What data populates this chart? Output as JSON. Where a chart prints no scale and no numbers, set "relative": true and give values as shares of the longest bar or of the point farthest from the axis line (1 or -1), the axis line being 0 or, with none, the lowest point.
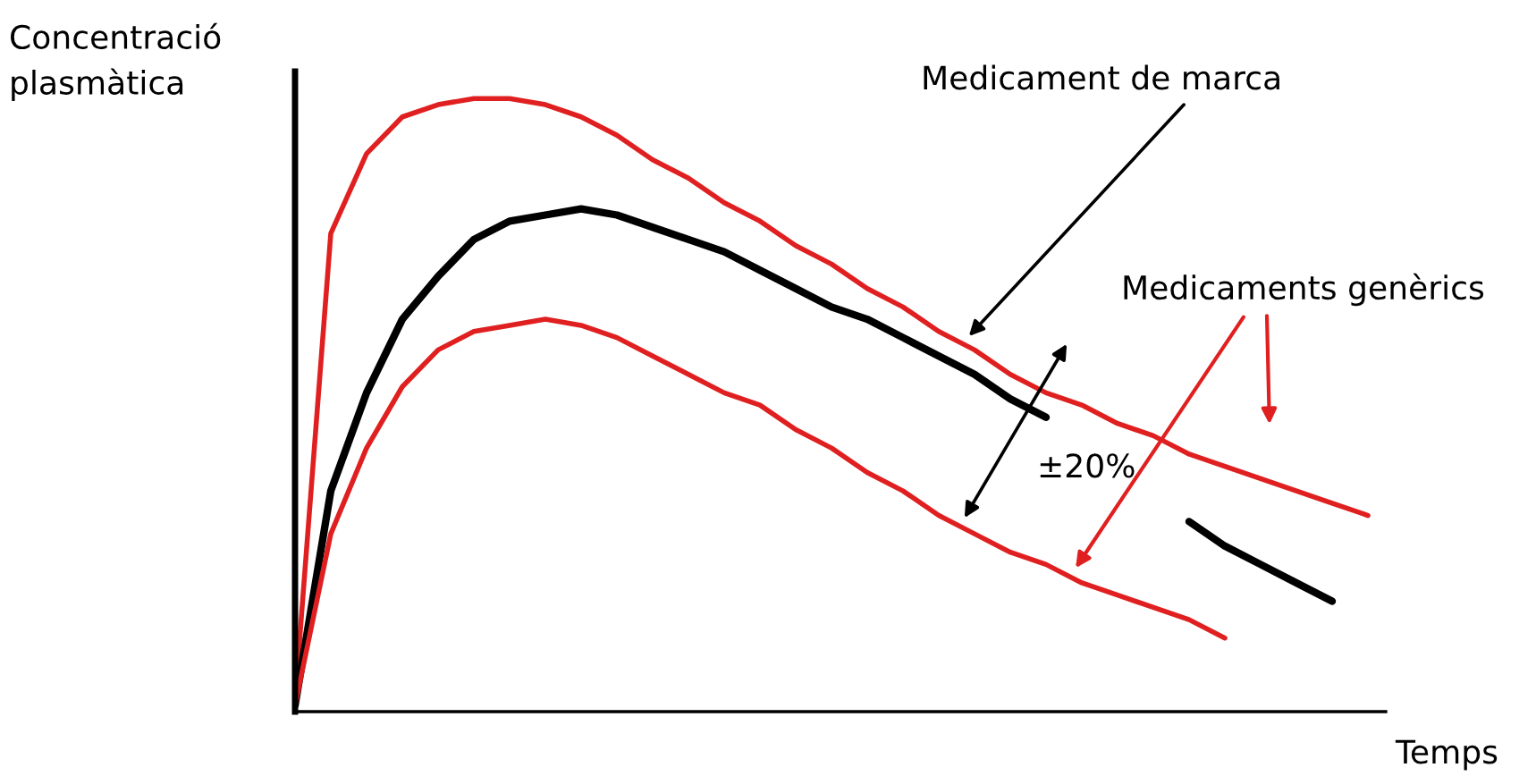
{
  "chart_data": {
    "type": "line",
    "relative": true,
    "xlabel": "Temps",
    "ylabel": "Concentració\nplasmàtica",
    "categories": [
      null,
      null,
      null,
      null,
      null,
      null,
      null,
      null,
      null,
      null,
      null,
      null,
      null,
      null,
      null,
      null,
      null,
      null,
      null,
      null,
      null,
      null,
      null,
      null,
      null,
      null,
      null,
      null,
      null,
      null,
      null
    ],
    "series": [
      {
        "color": "#e02020",
        "values": [
          0.02,
          0.78,
          0.91,
          0.97,
          0.99,
          1.0,
          1.0,
          0.99,
          0.97,
          0.94,
          0.9,
          0.87,
          0.83,
          0.8,
          0.76,
          0.73,
          0.69,
          0.66,
          0.62,
          0.59,
          0.55,
          0.52,
          0.5,
          0.47,
          0.45,
          0.42,
          0.4,
          0.38,
          0.36,
          0.34,
          0.32
        ]
      },
      {
        "color": "#000000",
        "values": [
          0.01,
          0.36,
          0.52,
          0.64,
          0.71,
          0.77,
          0.8,
          0.81,
          0.82,
          0.81,
          0.79,
          0.77,
          0.75,
          0.72,
          0.69,
          0.66,
          0.64,
          0.61,
          0.58,
          0.55,
          0.51,
          0.48,
          null,
          null,
          null,
          0.31,
          0.27,
          0.24,
          0.21,
          0.18,
          null
        ]
      },
      {
        "color": "#e02020",
        "values": [
          0.01,
          0.29,
          0.43,
          0.53,
          0.59,
          0.62,
          0.63,
          0.64,
          0.63,
          0.61,
          0.58,
          0.55,
          0.52,
          0.5,
          0.46,
          0.43,
          0.39,
          0.36,
          0.32,
          0.29,
          0.26,
          0.24,
          0.21,
          0.19,
          0.17,
          0.15,
          0.12,
          null,
          null,
          null,
          null
        ]
      }
    ],
    "annotations": [
      "Medicament de marca",
      "Medicaments genèrics",
      "±20%"
    ],
    "legend": false,
    "grid": false,
    "marker": "none",
    "line_style": "solid"
  }
}
